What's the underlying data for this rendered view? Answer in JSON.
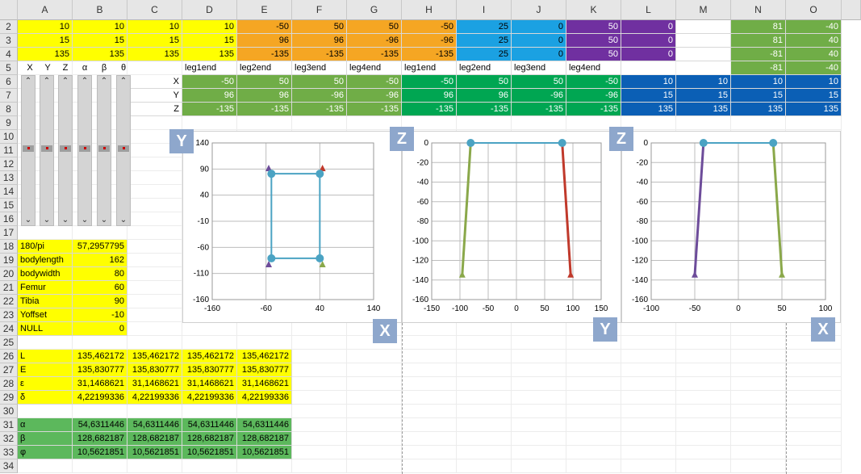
{
  "columns": [
    "A",
    "B",
    "C",
    "D",
    "E",
    "F",
    "G",
    "H",
    "I",
    "J",
    "K",
    "L",
    "M",
    "N",
    "O"
  ],
  "rows": [
    "2",
    "3",
    "4",
    "5",
    "6",
    "7",
    "8",
    "9",
    "10",
    "11",
    "12",
    "13",
    "14",
    "15",
    "16",
    "17",
    "18",
    "19",
    "20",
    "21",
    "22",
    "23",
    "24",
    "25",
    "26",
    "27",
    "28",
    "29",
    "30",
    "31",
    "32",
    "33",
    "34"
  ],
  "colors": {
    "yellow": "#ffff00",
    "orange": "#f5a623",
    "blue_light": "#1ba1e2",
    "purple": "#7030a0",
    "green_light": "#70ad47",
    "green_dark": "#00a652",
    "blue_dark": "#0b5fb5",
    "green_sheet": "#5cb85c",
    "leg_green": "#8aa84a",
    "leg_red": "#c0392b",
    "leg_purple": "#6d4c9a",
    "line_teal": "#4ba3c3"
  },
  "top_block": {
    "row2": [
      "10",
      "10",
      "10",
      "10",
      "-50",
      "50",
      "50",
      "-50",
      "25",
      "0",
      "50",
      "0",
      "",
      "81",
      "-40"
    ],
    "row3": [
      "15",
      "15",
      "15",
      "15",
      "96",
      "96",
      "-96",
      "-96",
      "25",
      "0",
      "50",
      "0",
      "",
      "81",
      "40"
    ],
    "row4": [
      "135",
      "135",
      "135",
      "135",
      "-135",
      "-135",
      "-135",
      "-135",
      "25",
      "0",
      "50",
      "0",
      "",
      "-81",
      "40"
    ],
    "row5_labels": [
      "X",
      "Y",
      "Z",
      "α",
      "β",
      "θ"
    ],
    "row5_o": "-81",
    "row5_o2": "-40",
    "row5_legs": [
      "leg1end",
      "leg2end",
      "leg3end",
      "leg4end",
      "leg1end",
      "leg2end",
      "leg3end",
      "leg4end"
    ],
    "xyz_labels": [
      "X",
      "Y",
      "Z"
    ],
    "row6": [
      "-50",
      "50",
      "50",
      "-50",
      "-50",
      "50",
      "50",
      "-50",
      "10",
      "10",
      "10",
      "10"
    ],
    "row7": [
      "96",
      "96",
      "-96",
      "-96",
      "96",
      "96",
      "-96",
      "-96",
      "15",
      "15",
      "15",
      "15"
    ],
    "row8": [
      "-135",
      "-135",
      "-135",
      "-135",
      "-135",
      "-135",
      "-135",
      "-135",
      "135",
      "135",
      "135",
      "135"
    ]
  },
  "params": [
    {
      "name": "180/pi",
      "value": "57,2957795"
    },
    {
      "name": "bodylength",
      "value": "162"
    },
    {
      "name": "bodywidth",
      "value": "80"
    },
    {
      "name": "Femur",
      "value": "60"
    },
    {
      "name": "Tibia",
      "value": "90"
    },
    {
      "name": "Yoffset",
      "value": "-10"
    },
    {
      "name": "NULL",
      "value": "0"
    }
  ],
  "calc_yellow": [
    {
      "name": "L",
      "values": [
        "135,462172",
        "135,462172",
        "135,462172",
        "135,462172"
      ]
    },
    {
      "name": "E",
      "values": [
        "135,830777",
        "135,830777",
        "135,830777",
        "135,830777"
      ]
    },
    {
      "name": "ε",
      "values": [
        "31,1468621",
        "31,1468621",
        "31,1468621",
        "31,1468621"
      ]
    },
    {
      "name": "δ",
      "values": [
        "4,22199336",
        "4,22199336",
        "4,22199336",
        "4,22199336"
      ]
    }
  ],
  "calc_green": [
    {
      "name": "α",
      "values": [
        "54,6311446",
        "54,6311446",
        "54,6311446",
        "54,6311446"
      ]
    },
    {
      "name": "β",
      "values": [
        "128,682187",
        "128,682187",
        "128,682187",
        "128,682187"
      ]
    },
    {
      "name": "φ",
      "values": [
        "10,5621851",
        "10,5621851",
        "10,5621851",
        "10,5621851"
      ]
    }
  ],
  "sliders": [
    {
      "name": "X",
      "level": 0.46
    },
    {
      "name": "Y",
      "level": 0.46
    },
    {
      "name": "Z",
      "level": 0.46
    },
    {
      "name": "α",
      "level": 0.46
    },
    {
      "name": "β",
      "level": 0.46
    },
    {
      "name": "θ",
      "level": 0.46
    }
  ],
  "chart_data": [
    {
      "type": "scatter",
      "badge_y": "Y",
      "badge_x": "X",
      "x_ticks": [
        "-160",
        "-60",
        "40",
        "140"
      ],
      "y_ticks": [
        "140",
        "90",
        "40",
        "-10",
        "-60",
        "-110",
        "-160"
      ],
      "xlim": [
        -160,
        140
      ],
      "ylim": [
        -160,
        140
      ],
      "points": [
        [
          -50,
          81
        ],
        [
          40,
          81
        ],
        [
          -50,
          -81
        ],
        [
          40,
          -81
        ]
      ],
      "markers": [
        {
          "x": -55,
          "y": 92,
          "color": "leg_purple"
        },
        {
          "x": 45,
          "y": 92,
          "color": "leg_red"
        },
        {
          "x": -55,
          "y": -92,
          "color": "leg_purple"
        },
        {
          "x": 45,
          "y": -92,
          "color": "leg_green"
        }
      ]
    },
    {
      "type": "line",
      "badge_y": "Z",
      "badge_x": "Y",
      "x_ticks": [
        "-150",
        "-100",
        "-50",
        "0",
        "50",
        "100",
        "150"
      ],
      "y_ticks": [
        "0",
        "-20",
        "-40",
        "-60",
        "-80",
        "-100",
        "-120",
        "-140",
        "-160"
      ],
      "xlim": [
        -150,
        150
      ],
      "ylim": [
        -160,
        0
      ],
      "body": [
        [
          -81,
          0
        ],
        [
          81,
          0
        ]
      ],
      "legs": [
        {
          "from": [
            -81,
            0
          ],
          "to": [
            -96,
            -135
          ],
          "color": "leg_green"
        },
        {
          "from": [
            81,
            0
          ],
          "to": [
            96,
            -135
          ],
          "color": "leg_red"
        }
      ]
    },
    {
      "type": "line",
      "badge_y": "Z",
      "badge_x": "X",
      "x_ticks": [
        "-100",
        "-50",
        "0",
        "50",
        "100"
      ],
      "y_ticks": [
        "0",
        "-20",
        "-40",
        "-60",
        "-80",
        "-100",
        "-120",
        "-140",
        "-160"
      ],
      "xlim": [
        -100,
        100
      ],
      "ylim": [
        -160,
        0
      ],
      "body": [
        [
          -40,
          0
        ],
        [
          40,
          0
        ]
      ],
      "legs": [
        {
          "from": [
            -40,
            0
          ],
          "to": [
            -50,
            -135
          ],
          "color": "leg_purple"
        },
        {
          "from": [
            40,
            0
          ],
          "to": [
            50,
            -135
          ],
          "color": "leg_green"
        }
      ]
    }
  ]
}
